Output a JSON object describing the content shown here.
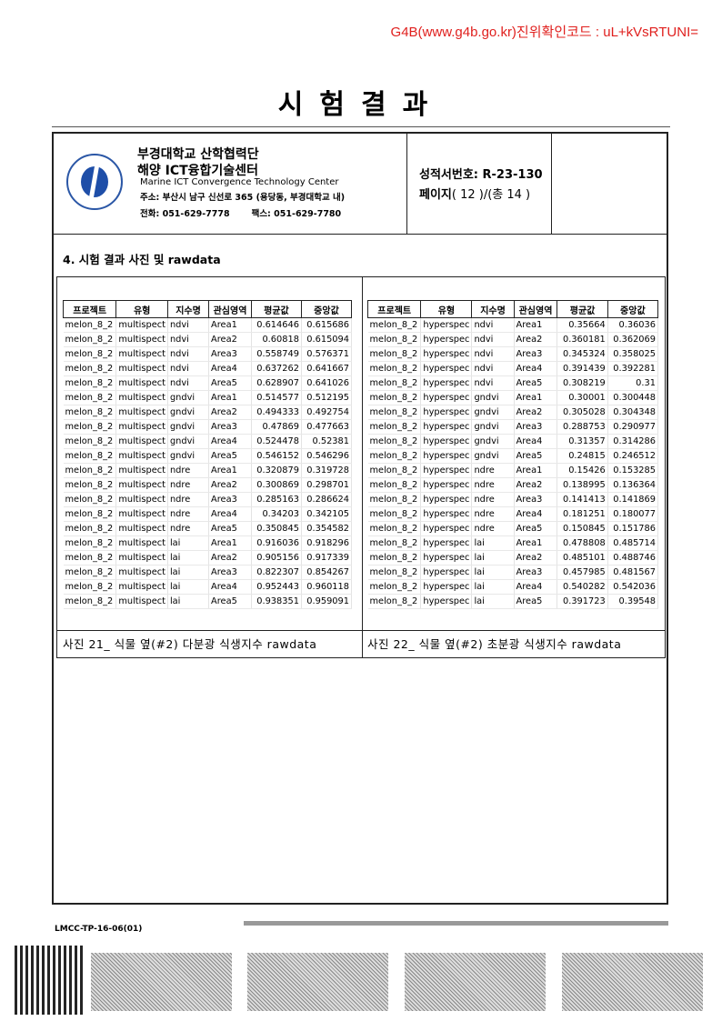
{
  "verify": "G4B(www.g4b.go.kr)진위확인코드 : uL+kVsRTUNI=",
  "title": "시험결과",
  "org": {
    "name1": "부경대학교 산학협력단",
    "name2": "해양 ICT융합기술센터",
    "name_en": "Marine ICT Convergence Technology Center",
    "address": "주소: 부산시 남구 신선로 365 (용당동, 부경대학교 내)",
    "tel": "전화: 051-629-7778",
    "fax": "팩스:  051-629-7780",
    "logo_text": "PUKYONG NATIONAL UNIVERSITY 부경대학교"
  },
  "report": {
    "number": "성적서번호:  R-23-130",
    "page_label": "페이지",
    "page": "( 12 )/(총 14 )"
  },
  "section": "4. 시험 결과 사진 및 rawdata",
  "columns": [
    "프로젝트",
    "유형",
    "지수명",
    "관심영역",
    "평균값",
    "중앙값"
  ],
  "left": {
    "caption": "사진 21_ 식물 옆(#2) 다분광 식생지수 rawdata",
    "rows": [
      [
        "melon_8_2",
        "multispect",
        "ndvi",
        "Area1",
        "0.614646",
        "0.615686"
      ],
      [
        "melon_8_2",
        "multispect",
        "ndvi",
        "Area2",
        "0.60818",
        "0.615094"
      ],
      [
        "melon_8_2",
        "multispect",
        "ndvi",
        "Area3",
        "0.558749",
        "0.576371"
      ],
      [
        "melon_8_2",
        "multispect",
        "ndvi",
        "Area4",
        "0.637262",
        "0.641667"
      ],
      [
        "melon_8_2",
        "multispect",
        "ndvi",
        "Area5",
        "0.628907",
        "0.641026"
      ],
      [
        "melon_8_2",
        "multispect",
        "gndvi",
        "Area1",
        "0.514577",
        "0.512195"
      ],
      [
        "melon_8_2",
        "multispect",
        "gndvi",
        "Area2",
        "0.494333",
        "0.492754"
      ],
      [
        "melon_8_2",
        "multispect",
        "gndvi",
        "Area3",
        "0.47869",
        "0.477663"
      ],
      [
        "melon_8_2",
        "multispect",
        "gndvi",
        "Area4",
        "0.524478",
        "0.52381"
      ],
      [
        "melon_8_2",
        "multispect",
        "gndvi",
        "Area5",
        "0.546152",
        "0.546296"
      ],
      [
        "melon_8_2",
        "multispect",
        "ndre",
        "Area1",
        "0.320879",
        "0.319728"
      ],
      [
        "melon_8_2",
        "multispect",
        "ndre",
        "Area2",
        "0.300869",
        "0.298701"
      ],
      [
        "melon_8_2",
        "multispect",
        "ndre",
        "Area3",
        "0.285163",
        "0.286624"
      ],
      [
        "melon_8_2",
        "multispect",
        "ndre",
        "Area4",
        "0.34203",
        "0.342105"
      ],
      [
        "melon_8_2",
        "multispect",
        "ndre",
        "Area5",
        "0.350845",
        "0.354582"
      ],
      [
        "melon_8_2",
        "multispect",
        "lai",
        "Area1",
        "0.916036",
        "0.918296"
      ],
      [
        "melon_8_2",
        "multispect",
        "lai",
        "Area2",
        "0.905156",
        "0.917339"
      ],
      [
        "melon_8_2",
        "multispect",
        "lai",
        "Area3",
        "0.822307",
        "0.854267"
      ],
      [
        "melon_8_2",
        "multispect",
        "lai",
        "Area4",
        "0.952443",
        "0.960118"
      ],
      [
        "melon_8_2",
        "multispect",
        "lai",
        "Area5",
        "0.938351",
        "0.959091"
      ]
    ]
  },
  "right": {
    "caption": "사진 22_ 식물 옆(#2) 초분광 식생지수 rawdata",
    "rows": [
      [
        "melon_8_2",
        "hyperspec",
        "ndvi",
        "Area1",
        "0.35664",
        "0.36036"
      ],
      [
        "melon_8_2",
        "hyperspec",
        "ndvi",
        "Area2",
        "0.360181",
        "0.362069"
      ],
      [
        "melon_8_2",
        "hyperspec",
        "ndvi",
        "Area3",
        "0.345324",
        "0.358025"
      ],
      [
        "melon_8_2",
        "hyperspec",
        "ndvi",
        "Area4",
        "0.391439",
        "0.392281"
      ],
      [
        "melon_8_2",
        "hyperspec",
        "ndvi",
        "Area5",
        "0.308219",
        "0.31"
      ],
      [
        "melon_8_2",
        "hyperspec",
        "gndvi",
        "Area1",
        "0.30001",
        "0.300448"
      ],
      [
        "melon_8_2",
        "hyperspec",
        "gndvi",
        "Area2",
        "0.305028",
        "0.304348"
      ],
      [
        "melon_8_2",
        "hyperspec",
        "gndvi",
        "Area3",
        "0.288753",
        "0.290977"
      ],
      [
        "melon_8_2",
        "hyperspec",
        "gndvi",
        "Area4",
        "0.31357",
        "0.314286"
      ],
      [
        "melon_8_2",
        "hyperspec",
        "gndvi",
        "Area5",
        "0.24815",
        "0.246512"
      ],
      [
        "melon_8_2",
        "hyperspec",
        "ndre",
        "Area1",
        "0.15426",
        "0.153285"
      ],
      [
        "melon_8_2",
        "hyperspec",
        "ndre",
        "Area2",
        "0.138995",
        "0.136364"
      ],
      [
        "melon_8_2",
        "hyperspec",
        "ndre",
        "Area3",
        "0.141413",
        "0.141869"
      ],
      [
        "melon_8_2",
        "hyperspec",
        "ndre",
        "Area4",
        "0.181251",
        "0.180077"
      ],
      [
        "melon_8_2",
        "hyperspec",
        "ndre",
        "Area5",
        "0.150845",
        "0.151786"
      ],
      [
        "melon_8_2",
        "hyperspec",
        "lai",
        "Area1",
        "0.478808",
        "0.485714"
      ],
      [
        "melon_8_2",
        "hyperspec",
        "lai",
        "Area2",
        "0.485101",
        "0.488746"
      ],
      [
        "melon_8_2",
        "hyperspec",
        "lai",
        "Area3",
        "0.457985",
        "0.481567"
      ],
      [
        "melon_8_2",
        "hyperspec",
        "lai",
        "Area4",
        "0.540282",
        "0.542036"
      ],
      [
        "melon_8_2",
        "hyperspec",
        "lai",
        "Area5",
        "0.391723",
        "0.39548"
      ]
    ]
  },
  "footer": {
    "form_code": "LMCC-TP-16-06(01)"
  }
}
